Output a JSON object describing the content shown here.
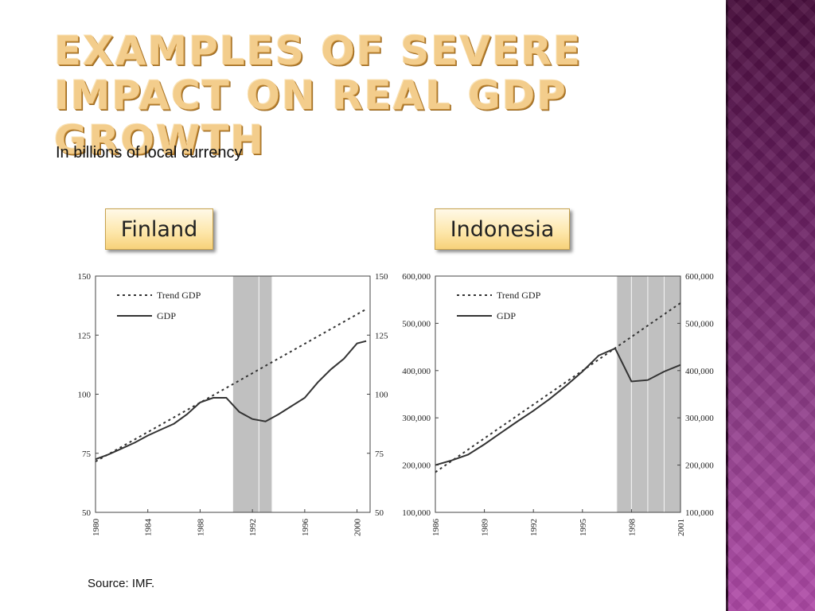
{
  "slide": {
    "title": "Examples of severe impact on real GDP growth",
    "subtitle": "In billions of local currency",
    "source": "Source: IMF.",
    "colors": {
      "title": "#f3cd8c",
      "band": "#6a2062",
      "label_fill": "#fde6a8",
      "shade": "#c0c0c0",
      "line": "#333333"
    }
  },
  "labels": {
    "finland": "Finland",
    "indonesia": "Indonesia"
  },
  "chart_data": [
    {
      "type": "line",
      "title": "Finland",
      "xlim": [
        1980,
        2001
      ],
      "ylim": [
        50,
        150
      ],
      "x_ticks": [
        1980,
        1984,
        1988,
        1992,
        1996,
        2000
      ],
      "y_ticks": [
        "50",
        "75",
        "100",
        "125",
        "150"
      ],
      "grid": false,
      "legend_position": "top-left",
      "shaded": [
        [
          1990.5,
          1992.5
        ],
        [
          1992.5,
          1993.5
        ]
      ],
      "series": [
        {
          "name": "Trend GDP",
          "style": "dotted",
          "x": [
            1980,
            2000.7
          ],
          "y": [
            71.5,
            136
          ]
        },
        {
          "name": "GDP",
          "style": "solid",
          "x": [
            1980,
            1981,
            1982,
            1983,
            1984,
            1985,
            1986,
            1987,
            1988,
            1989,
            1990,
            1991,
            1992,
            1993,
            1994,
            1995,
            1996,
            1997,
            1998,
            1999,
            2000,
            2000.7
          ],
          "y": [
            72.5,
            74.5,
            77,
            79.5,
            82.5,
            85,
            87.5,
            91.5,
            96.5,
            98.5,
            98.5,
            92.5,
            89.5,
            88.5,
            91.5,
            95,
            98.5,
            105,
            110.5,
            115,
            121.5,
            122.5
          ]
        }
      ]
    },
    {
      "type": "line",
      "title": "Indonesia",
      "xlim": [
        1986,
        2001
      ],
      "ylim": [
        100000,
        600000
      ],
      "x_ticks": [
        1986,
        1989,
        1992,
        1995,
        1998,
        2001
      ],
      "y_ticks": [
        "100,000",
        "200,000",
        "300,000",
        "400,000",
        "500,000",
        "600,000"
      ],
      "grid": false,
      "legend_position": "top-left",
      "shaded": [
        [
          1997.1,
          1998
        ],
        [
          1998,
          1999
        ],
        [
          1999,
          2000
        ],
        [
          2000,
          2001
        ]
      ],
      "series": [
        {
          "name": "Trend GDP",
          "style": "dotted",
          "x": [
            1986,
            2001
          ],
          "y": [
            185000,
            543000
          ]
        },
        {
          "name": "GDP",
          "style": "solid",
          "x": [
            1986,
            1987,
            1988,
            1989,
            1990,
            1991,
            1992,
            1993,
            1994,
            1995,
            1996,
            1997,
            1998,
            1999,
            2000,
            2001
          ],
          "y": [
            200000,
            210000,
            222000,
            244000,
            268000,
            292000,
            315000,
            340000,
            368000,
            398000,
            432000,
            447000,
            377000,
            380000,
            398000,
            412000
          ]
        }
      ]
    }
  ]
}
